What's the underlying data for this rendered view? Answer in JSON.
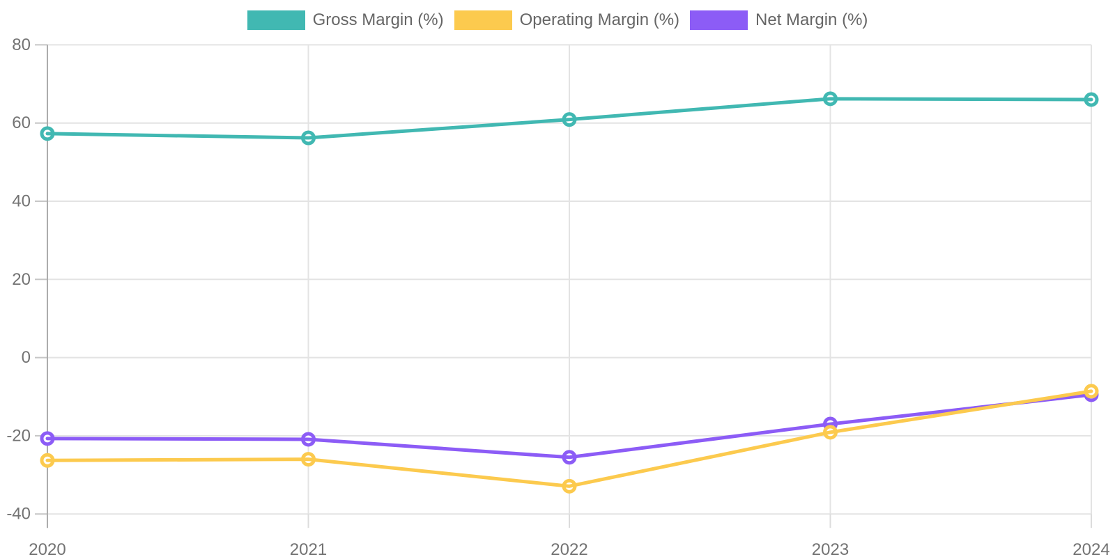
{
  "chart_data": {
    "type": "line",
    "title": "",
    "x": [
      "2020",
      "2021",
      "2022",
      "2023",
      "2024"
    ],
    "series": [
      {
        "name": "Gross Margin (%)",
        "color": "#41B8B2",
        "values": [
          57.3,
          56.2,
          60.9,
          66.2,
          66.0
        ]
      },
      {
        "name": "Operating Margin (%)",
        "color": "#FCCA4E",
        "values": [
          -26.3,
          -26.0,
          -32.9,
          -19.1,
          -8.6
        ]
      },
      {
        "name": "Net Margin (%)",
        "color": "#8C5CF6",
        "values": [
          -20.7,
          -20.9,
          -25.5,
          -17.0,
          -9.5
        ]
      }
    ],
    "ylim": [
      -40,
      80
    ],
    "yticks": [
      80,
      60,
      40,
      20,
      0,
      -20,
      -40
    ],
    "grid": true,
    "legend_position": "top",
    "point_fill": "#FFFFFF"
  }
}
